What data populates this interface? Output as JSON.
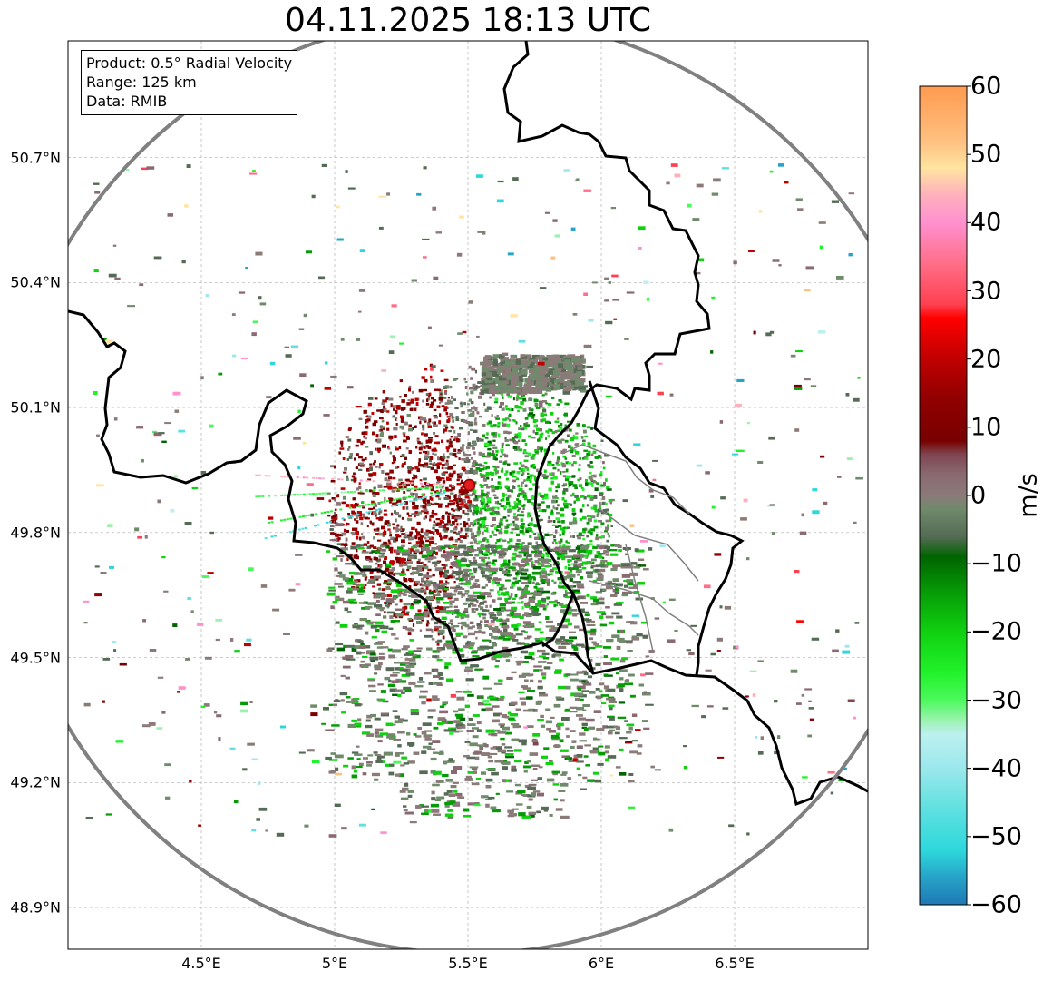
{
  "title": "04.11.2025 18:13 UTC",
  "info": {
    "product": "Product: 0.5° Radial Velocity",
    "range": "Range: 125 km",
    "data": "Data: RMIB"
  },
  "map": {
    "lon_range": [
      4.0,
      7.0
    ],
    "lat_range": [
      48.8,
      50.98
    ],
    "radar_site": {
      "lon": 5.505,
      "lat": 49.914
    },
    "range_ring_km": 125,
    "lat_ticks": [
      "50.7°N",
      "50.4°N",
      "50.1°N",
      "49.8°N",
      "49.5°N",
      "49.2°N",
      "48.9°N"
    ],
    "lat_tick_values": [
      50.7,
      50.4,
      50.1,
      49.8,
      49.5,
      49.2,
      48.9
    ],
    "lon_ticks": [
      "4.5°E",
      "5°E",
      "5.5°E",
      "6°E",
      "6.5°E"
    ],
    "lon_tick_values": [
      4.5,
      5.0,
      5.5,
      6.0,
      6.5
    ],
    "grid": true,
    "colors": {
      "border": "#000000",
      "ring": "#808080",
      "grid": "#b0b0b0",
      "radar_site": "#e41a1c"
    }
  },
  "colorbar": {
    "label": "m/s",
    "min": -60,
    "max": 60,
    "ticks": [
      "60",
      "50",
      "40",
      "30",
      "20",
      "10",
      "0",
      "−10",
      "−20",
      "−30",
      "−40",
      "−50",
      "−60"
    ],
    "tick_values": [
      60,
      50,
      40,
      30,
      20,
      10,
      0,
      -10,
      -20,
      -30,
      -40,
      -50,
      -60
    ],
    "stops": [
      {
        "v": -60,
        "c": "#1f78b4"
      },
      {
        "v": -56,
        "c": "#26a3c8"
      },
      {
        "v": -52,
        "c": "#2dd8dc"
      },
      {
        "v": -46,
        "c": "#5fe0e0"
      },
      {
        "v": -40,
        "c": "#9be8ec"
      },
      {
        "v": -35,
        "c": "#bdf0f0"
      },
      {
        "v": -33,
        "c": "#9cf3b0"
      },
      {
        "v": -30,
        "c": "#4cf95c"
      },
      {
        "v": -26,
        "c": "#22f22a"
      },
      {
        "v": -20,
        "c": "#10d010"
      },
      {
        "v": -14,
        "c": "#069a06"
      },
      {
        "v": -9,
        "c": "#006400"
      },
      {
        "v": -6,
        "c": "#556b55"
      },
      {
        "v": -2,
        "c": "#708a6c"
      },
      {
        "v": 0,
        "c": "#8a7a78"
      },
      {
        "v": 3,
        "c": "#8a6a72"
      },
      {
        "v": 6,
        "c": "#804650"
      },
      {
        "v": 8,
        "c": "#780000"
      },
      {
        "v": 14,
        "c": "#900000"
      },
      {
        "v": 20,
        "c": "#c00000"
      },
      {
        "v": 26,
        "c": "#ff0000"
      },
      {
        "v": 28,
        "c": "#ff4050"
      },
      {
        "v": 34,
        "c": "#ff6e88"
      },
      {
        "v": 40,
        "c": "#ff90d0"
      },
      {
        "v": 44,
        "c": "#ffb0bc"
      },
      {
        "v": 48,
        "c": "#ffe4a0"
      },
      {
        "v": 52,
        "c": "#ffc080"
      },
      {
        "v": 60,
        "c": "#ff9a50"
      }
    ]
  }
}
